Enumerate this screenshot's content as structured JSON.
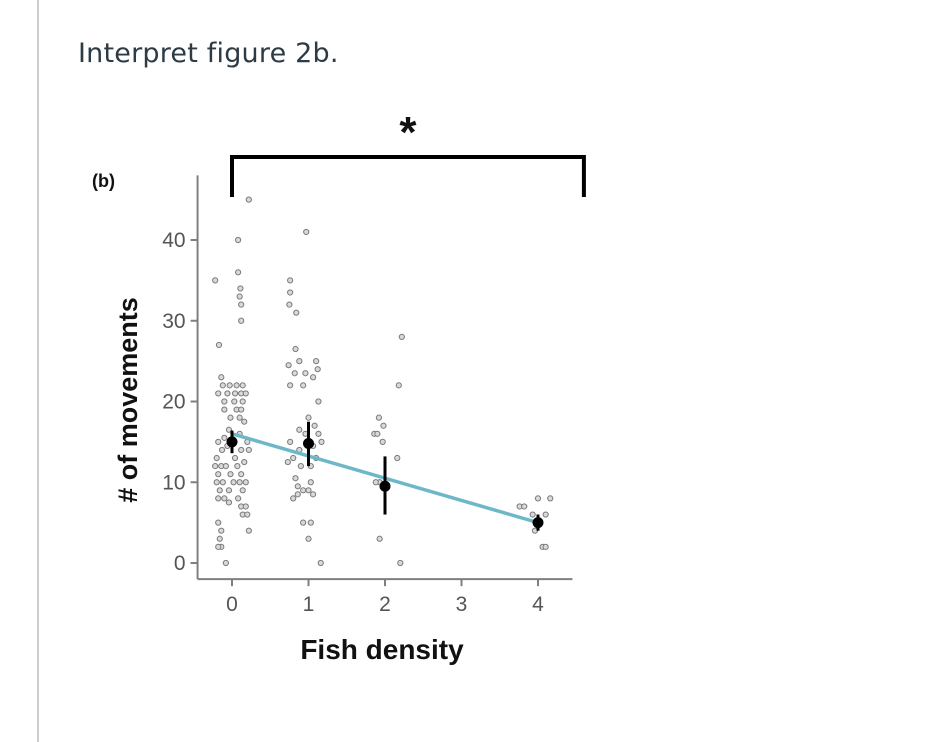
{
  "question": {
    "text": "Interpret figure 2b."
  },
  "chart_data": {
    "type": "scatter",
    "panel_label": "(b)",
    "xlabel": "Fish density",
    "ylabel": "# of movements",
    "x_ticks": [
      0,
      1,
      2,
      3,
      4
    ],
    "y_ticks": [
      0,
      10,
      20,
      30,
      40
    ],
    "xlim": [
      -0.45,
      4.45
    ],
    "ylim": [
      -2,
      48
    ],
    "significance": {
      "symbol": "*",
      "from_x": 0,
      "to_x": 4.6
    },
    "trend_line": {
      "x": [
        0,
        4
      ],
      "y": [
        16,
        5
      ],
      "color": "#6db8c8"
    },
    "means": [
      {
        "x": 0,
        "mean": 15,
        "lower": 13.6,
        "upper": 16.4
      },
      {
        "x": 1,
        "mean": 14.8,
        "lower": 12,
        "upper": 17.5
      },
      {
        "x": 2,
        "mean": 9.5,
        "lower": 6,
        "upper": 13.2
      },
      {
        "x": 4,
        "mean": 5,
        "lower": 4,
        "upper": 6
      }
    ],
    "points": [
      {
        "x": 0.22,
        "y": 45
      },
      {
        "x": 0.08,
        "y": 40
      },
      {
        "x": -0.22,
        "y": 35
      },
      {
        "x": 0.08,
        "y": 36
      },
      {
        "x": 0.11,
        "y": 34
      },
      {
        "x": 0.1,
        "y": 33
      },
      {
        "x": 0.12,
        "y": 32
      },
      {
        "x": 0.12,
        "y": 30
      },
      {
        "x": -0.17,
        "y": 27
      },
      {
        "x": -0.14,
        "y": 23
      },
      {
        "x": -0.12,
        "y": 22
      },
      {
        "x": -0.03,
        "y": 22
      },
      {
        "x": 0.06,
        "y": 22
      },
      {
        "x": 0.14,
        "y": 22
      },
      {
        "x": -0.18,
        "y": 21
      },
      {
        "x": -0.06,
        "y": 21
      },
      {
        "x": 0.04,
        "y": 21
      },
      {
        "x": 0.12,
        "y": 21
      },
      {
        "x": 0.18,
        "y": 21
      },
      {
        "x": -0.1,
        "y": 20
      },
      {
        "x": 0.03,
        "y": 20
      },
      {
        "x": 0.14,
        "y": 20
      },
      {
        "x": -0.1,
        "y": 19
      },
      {
        "x": 0.06,
        "y": 19
      },
      {
        "x": 0.12,
        "y": 19
      },
      {
        "x": -0.02,
        "y": 18
      },
      {
        "x": 0.1,
        "y": 18
      },
      {
        "x": 0.16,
        "y": 17.5
      },
      {
        "x": -0.04,
        "y": 16.5
      },
      {
        "x": 0.1,
        "y": 16
      },
      {
        "x": -0.1,
        "y": 15.5
      },
      {
        "x": 0.2,
        "y": 15
      },
      {
        "x": -0.18,
        "y": 15
      },
      {
        "x": -0.06,
        "y": 14.5
      },
      {
        "x": 0.12,
        "y": 14
      },
      {
        "x": 0.22,
        "y": 14
      },
      {
        "x": -0.13,
        "y": 14
      },
      {
        "x": -0.2,
        "y": 13
      },
      {
        "x": 0.04,
        "y": 13
      },
      {
        "x": 0.16,
        "y": 12.5
      },
      {
        "x": -0.22,
        "y": 12
      },
      {
        "x": -0.14,
        "y": 12
      },
      {
        "x": -0.08,
        "y": 12
      },
      {
        "x": 0.07,
        "y": 12
      },
      {
        "x": -0.18,
        "y": 11
      },
      {
        "x": -0.02,
        "y": 11
      },
      {
        "x": 0.12,
        "y": 11
      },
      {
        "x": -0.2,
        "y": 10
      },
      {
        "x": -0.12,
        "y": 10
      },
      {
        "x": 0.02,
        "y": 10
      },
      {
        "x": 0.1,
        "y": 10
      },
      {
        "x": 0.18,
        "y": 10
      },
      {
        "x": -0.16,
        "y": 9
      },
      {
        "x": -0.04,
        "y": 9
      },
      {
        "x": 0.14,
        "y": 9
      },
      {
        "x": -0.18,
        "y": 8
      },
      {
        "x": -0.1,
        "y": 8
      },
      {
        "x": 0.08,
        "y": 8
      },
      {
        "x": -0.04,
        "y": 7.5
      },
      {
        "x": 0.12,
        "y": 7
      },
      {
        "x": 0.18,
        "y": 7
      },
      {
        "x": 0.14,
        "y": 6
      },
      {
        "x": 0.2,
        "y": 6
      },
      {
        "x": -0.18,
        "y": 5
      },
      {
        "x": -0.14,
        "y": 4
      },
      {
        "x": 0.22,
        "y": 4
      },
      {
        "x": -0.16,
        "y": 3
      },
      {
        "x": -0.14,
        "y": 2
      },
      {
        "x": -0.18,
        "y": 2
      },
      {
        "x": -0.08,
        "y": 0
      },
      {
        "x": 0.97,
        "y": 41
      },
      {
        "x": 0.76,
        "y": 35
      },
      {
        "x": 0.76,
        "y": 33.5
      },
      {
        "x": 0.75,
        "y": 32
      },
      {
        "x": 0.84,
        "y": 31
      },
      {
        "x": 0.83,
        "y": 26.5
      },
      {
        "x": 0.88,
        "y": 25
      },
      {
        "x": 1.1,
        "y": 25
      },
      {
        "x": 0.74,
        "y": 24.5
      },
      {
        "x": 1.12,
        "y": 24
      },
      {
        "x": 0.82,
        "y": 23.5
      },
      {
        "x": 0.96,
        "y": 23.5
      },
      {
        "x": 1.06,
        "y": 23
      },
      {
        "x": 0.76,
        "y": 22
      },
      {
        "x": 0.93,
        "y": 22
      },
      {
        "x": 1.13,
        "y": 20
      },
      {
        "x": 1.0,
        "y": 18
      },
      {
        "x": 1.08,
        "y": 17
      },
      {
        "x": 0.88,
        "y": 16.5
      },
      {
        "x": 0.96,
        "y": 16
      },
      {
        "x": 1.13,
        "y": 16
      },
      {
        "x": 1.17,
        "y": 15
      },
      {
        "x": 0.76,
        "y": 15
      },
      {
        "x": 1.06,
        "y": 14.5
      },
      {
        "x": 0.88,
        "y": 14
      },
      {
        "x": 0.8,
        "y": 13
      },
      {
        "x": 1.1,
        "y": 13
      },
      {
        "x": 0.73,
        "y": 12.5
      },
      {
        "x": 0.9,
        "y": 12
      },
      {
        "x": 1.03,
        "y": 12
      },
      {
        "x": 0.83,
        "y": 10.5
      },
      {
        "x": 1.03,
        "y": 10
      },
      {
        "x": 0.86,
        "y": 9.5
      },
      {
        "x": 0.93,
        "y": 9
      },
      {
        "x": 1.0,
        "y": 9
      },
      {
        "x": 0.86,
        "y": 8.5
      },
      {
        "x": 1.06,
        "y": 8.5
      },
      {
        "x": 0.8,
        "y": 8
      },
      {
        "x": 0.93,
        "y": 5
      },
      {
        "x": 1.03,
        "y": 5
      },
      {
        "x": 1.0,
        "y": 3
      },
      {
        "x": 1.16,
        "y": 0
      },
      {
        "x": 2.22,
        "y": 28
      },
      {
        "x": 2.18,
        "y": 22
      },
      {
        "x": 1.92,
        "y": 18
      },
      {
        "x": 1.98,
        "y": 17
      },
      {
        "x": 1.86,
        "y": 16
      },
      {
        "x": 1.9,
        "y": 16
      },
      {
        "x": 1.97,
        "y": 15
      },
      {
        "x": 2.16,
        "y": 13
      },
      {
        "x": 1.93,
        "y": 10
      },
      {
        "x": 1.88,
        "y": 10
      },
      {
        "x": 1.93,
        "y": 3
      },
      {
        "x": 2.2,
        "y": 0
      },
      {
        "x": 4.0,
        "y": 8
      },
      {
        "x": 4.16,
        "y": 8
      },
      {
        "x": 3.76,
        "y": 7
      },
      {
        "x": 3.82,
        "y": 7
      },
      {
        "x": 3.93,
        "y": 6
      },
      {
        "x": 4.1,
        "y": 6
      },
      {
        "x": 3.96,
        "y": 4
      },
      {
        "x": 4.06,
        "y": 2
      },
      {
        "x": 4.1,
        "y": 2
      }
    ]
  },
  "colors": {
    "point_fill": "#d9d9d9",
    "point_stroke": "#7a7a7a",
    "mean_color": "#000000",
    "axis_color": "#7f7f7f"
  }
}
